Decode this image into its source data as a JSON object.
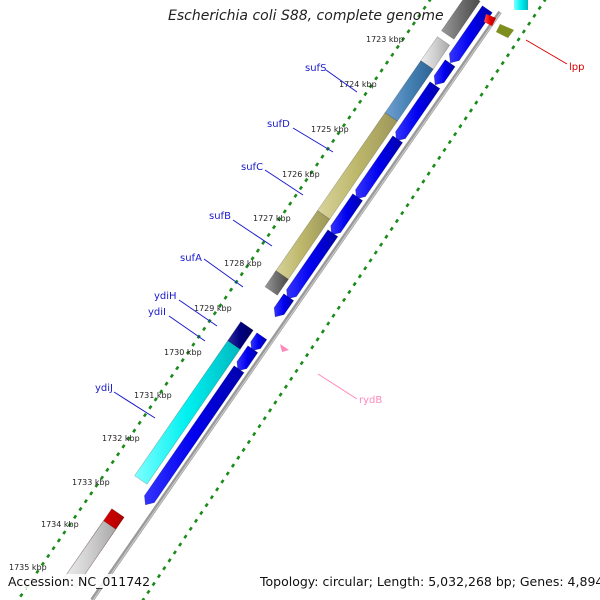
{
  "title": "Escherichia coli S88, complete genome",
  "footer": {
    "accession": "Accession: NC_011742",
    "summary": "Topology: circular; Length: 5,032,268 bp; Genes: 4,894"
  },
  "colors": {
    "backbone": "#8c8c8c",
    "tick": "#1a8a1a",
    "forward_cds": "#0000ee",
    "gene_label": "#1a1acc",
    "lpp_label": "#dd0000",
    "rydB_label": "#ff88bb"
  },
  "kbp_labels": [
    "1723 kbp",
    "1724 kbp",
    "1725 kbp",
    "1726 kbp",
    "1727 kbp",
    "1728 kbp",
    "1729 kbp",
    "1730 kbp",
    "1731 kbp",
    "1732 kbp",
    "1733 kbp",
    "1734 kbp",
    "1735 kbp"
  ],
  "gene_labels": [
    {
      "text": "sufS",
      "color": "#1a1acc"
    },
    {
      "text": "sufD",
      "color": "#1a1acc"
    },
    {
      "text": "sufC",
      "color": "#1a1acc"
    },
    {
      "text": "sufB",
      "color": "#1a1acc"
    },
    {
      "text": "sufA",
      "color": "#1a1acc"
    },
    {
      "text": "ydiH",
      "color": "#1a1acc"
    },
    {
      "text": "ydiI",
      "color": "#1a1acc"
    },
    {
      "text": "ydiJ",
      "color": "#1a1acc"
    },
    {
      "text": "lpp",
      "color": "#dd0000"
    },
    {
      "text": "rydB",
      "color": "#ff88bb"
    }
  ]
}
